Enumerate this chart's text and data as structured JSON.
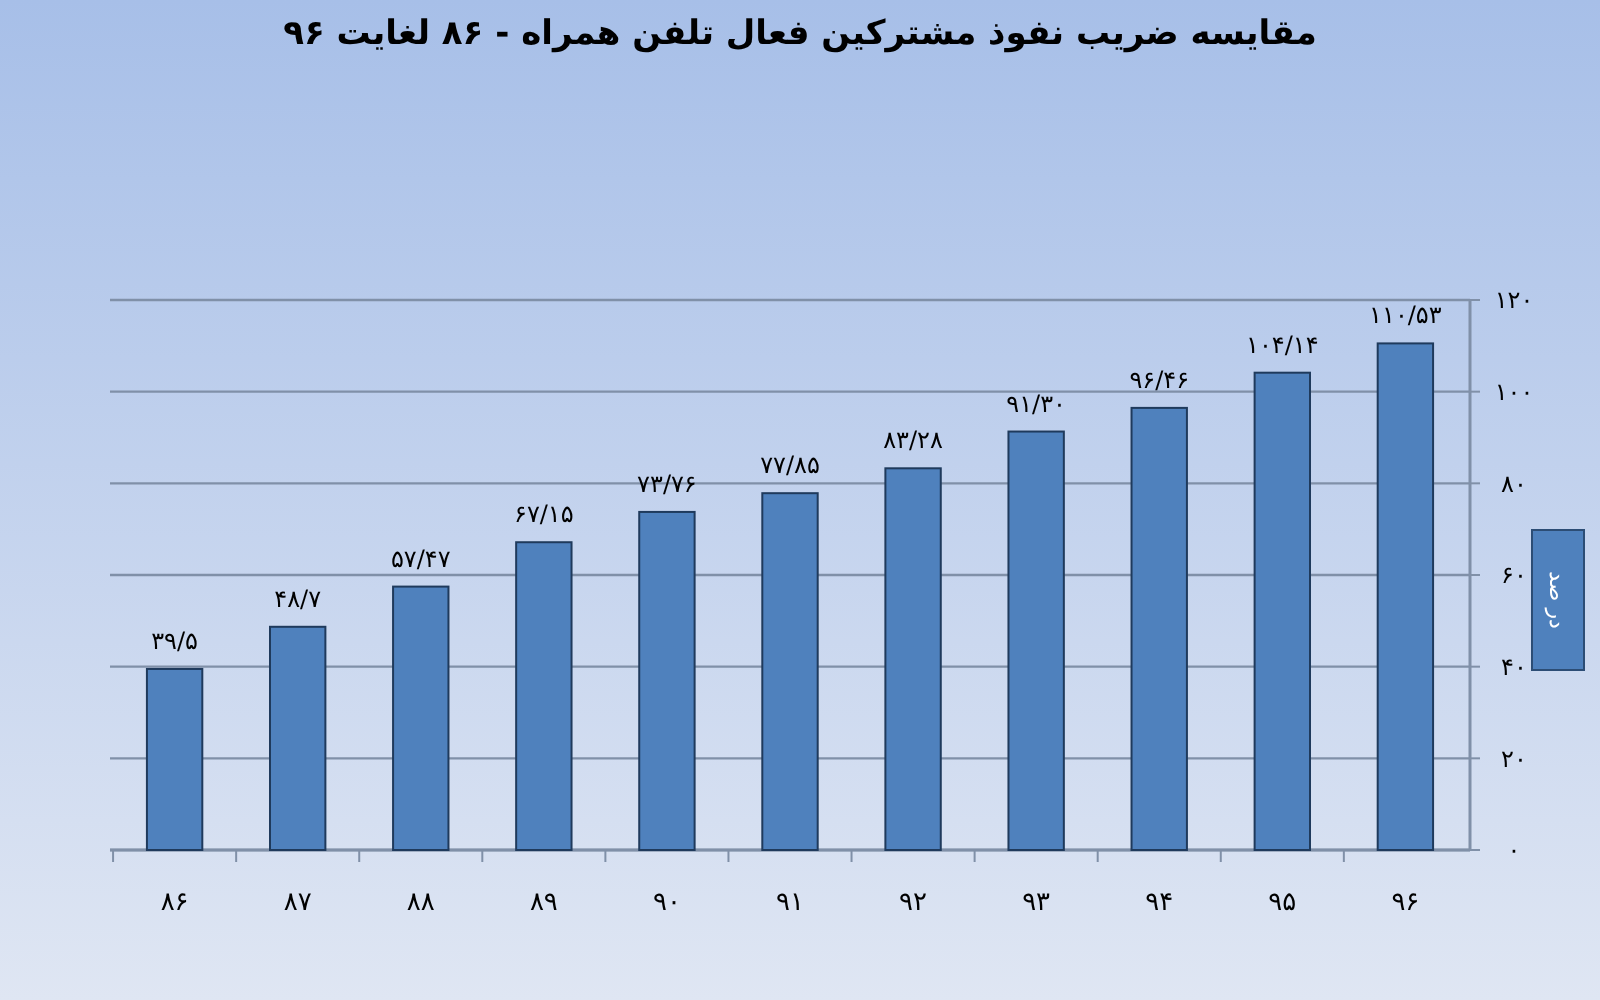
{
  "chart_data": {
    "type": "bar",
    "title": "مقایسه ضریب نفوذ مشترکین فعال تلفن همراه - ۸۶ لغایت ۹۶",
    "ylabel": "در صد",
    "categories": [
      "۸۶",
      "۸۷",
      "۸۸",
      "۸۹",
      "۹۰",
      "۹۱",
      "۹۲",
      "۹۳",
      "۹۴",
      "۹۵",
      "۹۶"
    ],
    "values": [
      39.5,
      48.7,
      57.47,
      67.15,
      73.76,
      77.85,
      83.28,
      91.3,
      96.46,
      104.14,
      110.53
    ],
    "value_labels": [
      "۳۹/۵",
      "۴۸/۷",
      "۵۷/۴۷",
      "۶۷/۱۵",
      "۷۳/۷۶",
      "۷۷/۸۵",
      "۸۳/۲۸",
      "۹۱/۳۰",
      "۹۶/۴۶",
      "۱۰۴/۱۴",
      "۱۱۰/۵۳"
    ],
    "color": "#4f81bd",
    "ylim": [
      0,
      120
    ],
    "yticks": [
      {
        "value": 0,
        "label": "۰"
      },
      {
        "value": 20,
        "label": "۲۰"
      },
      {
        "value": 40,
        "label": "۴۰"
      },
      {
        "value": 60,
        "label": "۶۰"
      },
      {
        "value": 80,
        "label": "۸۰"
      },
      {
        "value": 100,
        "label": "۱۰۰"
      },
      {
        "value": 120,
        "label": "۱۲۰"
      }
    ],
    "grid": "y"
  }
}
